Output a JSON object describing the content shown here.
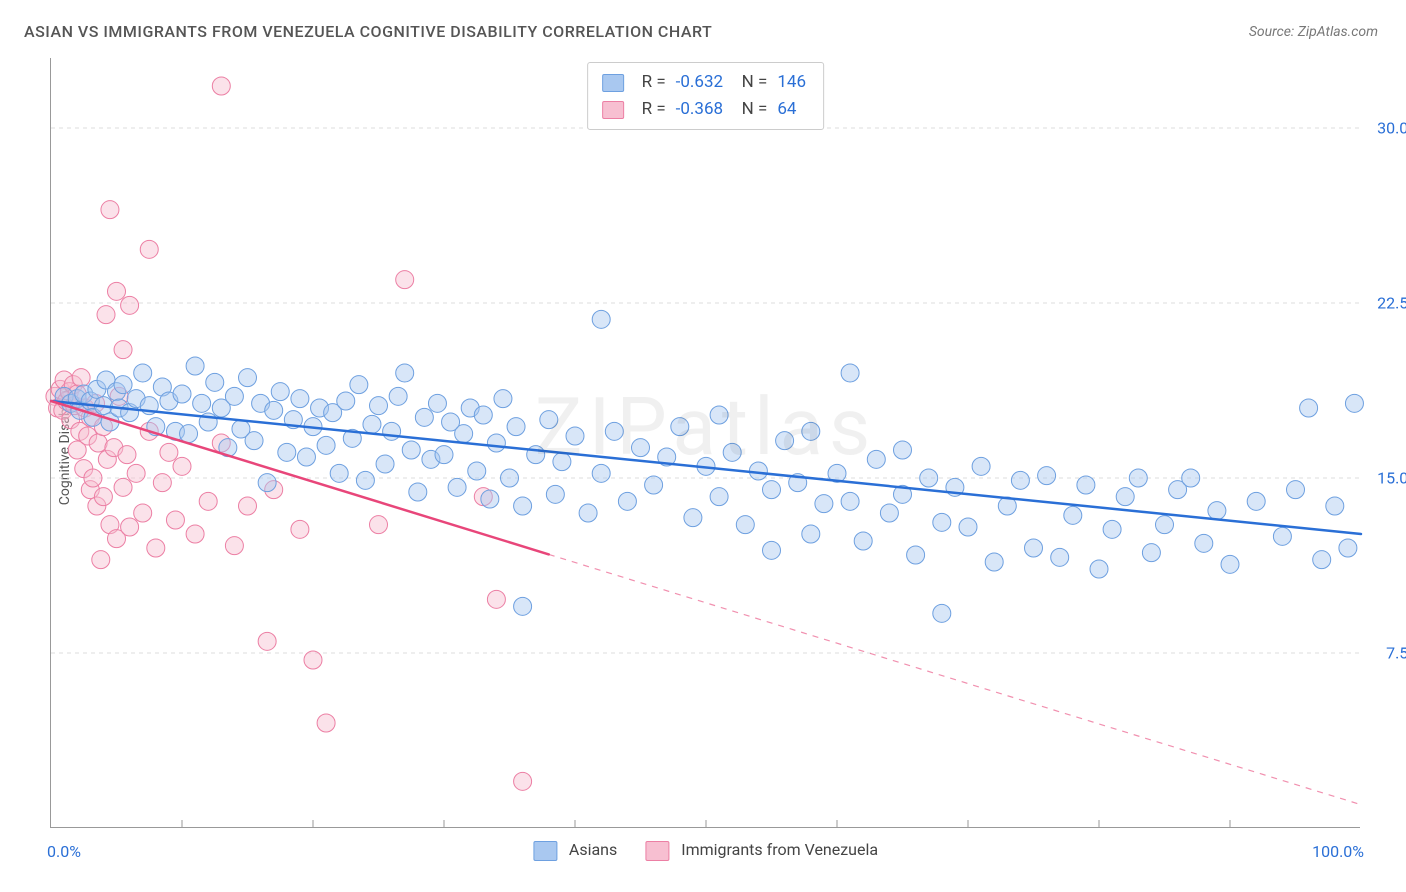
{
  "title": "ASIAN VS IMMIGRANTS FROM VENEZUELA COGNITIVE DISABILITY CORRELATION CHART",
  "source": "Source: ZipAtlas.com",
  "ylabel": "Cognitive Disability",
  "watermark": "ZIPatlas",
  "chart": {
    "type": "scatter",
    "xlim": [
      0,
      100
    ],
    "ylim": [
      0,
      33
    ],
    "x_tick_left": "0.0%",
    "x_tick_right": "100.0%",
    "x_minor_ticks": [
      10,
      20,
      30,
      40,
      50,
      60,
      70,
      80,
      90
    ],
    "y_ticks": [
      {
        "v": 7.5,
        "label": "7.5%"
      },
      {
        "v": 15.0,
        "label": "15.0%"
      },
      {
        "v": 22.5,
        "label": "22.5%"
      },
      {
        "v": 30.0,
        "label": "30.0%"
      }
    ],
    "background_color": "#ffffff",
    "grid_color": "#dddddd",
    "marker_radius": 9,
    "marker_opacity": 0.45,
    "line_width_solid": 2.5,
    "line_width_dash": 1.2,
    "series": [
      {
        "id": "asians",
        "label": "Asians",
        "color_fill": "#a9c8f0",
        "color_stroke": "#6ea0e0",
        "line_color": "#2a6fd6",
        "r": "-0.632",
        "n": "146",
        "trend": {
          "x1": 0,
          "y1": 18.3,
          "x2": 100,
          "y2": 12.6,
          "solid_until_x": 100
        },
        "points": [
          [
            1,
            18.5
          ],
          [
            1.5,
            18.2
          ],
          [
            2,
            18.4
          ],
          [
            2.2,
            17.9
          ],
          [
            2.5,
            18.6
          ],
          [
            3,
            18.3
          ],
          [
            3.2,
            17.6
          ],
          [
            3.5,
            18.8
          ],
          [
            4,
            18.1
          ],
          [
            4.2,
            19.2
          ],
          [
            4.5,
            17.4
          ],
          [
            5,
            18.7
          ],
          [
            5.2,
            18.0
          ],
          [
            5.5,
            19.0
          ],
          [
            6,
            17.8
          ],
          [
            6.5,
            18.4
          ],
          [
            7,
            19.5
          ],
          [
            7.5,
            18.1
          ],
          [
            8,
            17.2
          ],
          [
            8.5,
            18.9
          ],
          [
            9,
            18.3
          ],
          [
            9.5,
            17.0
          ],
          [
            10,
            18.6
          ],
          [
            10.5,
            16.9
          ],
          [
            11,
            19.8
          ],
          [
            11.5,
            18.2
          ],
          [
            12,
            17.4
          ],
          [
            12.5,
            19.1
          ],
          [
            13,
            18.0
          ],
          [
            13.5,
            16.3
          ],
          [
            14,
            18.5
          ],
          [
            14.5,
            17.1
          ],
          [
            15,
            19.3
          ],
          [
            15.5,
            16.6
          ],
          [
            16,
            18.2
          ],
          [
            16.5,
            14.8
          ],
          [
            17,
            17.9
          ],
          [
            17.5,
            18.7
          ],
          [
            18,
            16.1
          ],
          [
            18.5,
            17.5
          ],
          [
            19,
            18.4
          ],
          [
            19.5,
            15.9
          ],
          [
            20,
            17.2
          ],
          [
            20.5,
            18.0
          ],
          [
            21,
            16.4
          ],
          [
            21.5,
            17.8
          ],
          [
            22,
            15.2
          ],
          [
            22.5,
            18.3
          ],
          [
            23,
            16.7
          ],
          [
            23.5,
            19.0
          ],
          [
            24,
            14.9
          ],
          [
            24.5,
            17.3
          ],
          [
            25,
            18.1
          ],
          [
            25.5,
            15.6
          ],
          [
            26,
            17.0
          ],
          [
            26.5,
            18.5
          ],
          [
            27,
            19.5
          ],
          [
            27.5,
            16.2
          ],
          [
            28,
            14.4
          ],
          [
            28.5,
            17.6
          ],
          [
            29,
            15.8
          ],
          [
            29.5,
            18.2
          ],
          [
            30,
            16.0
          ],
          [
            30.5,
            17.4
          ],
          [
            31,
            14.6
          ],
          [
            31.5,
            16.9
          ],
          [
            32,
            18.0
          ],
          [
            32.5,
            15.3
          ],
          [
            33,
            17.7
          ],
          [
            33.5,
            14.1
          ],
          [
            34,
            16.5
          ],
          [
            34.5,
            18.4
          ],
          [
            35,
            15.0
          ],
          [
            35.5,
            17.2
          ],
          [
            36,
            13.8
          ],
          [
            36,
            9.5
          ],
          [
            37,
            16.0
          ],
          [
            38,
            17.5
          ],
          [
            38.5,
            14.3
          ],
          [
            39,
            15.7
          ],
          [
            40,
            16.8
          ],
          [
            41,
            13.5
          ],
          [
            42,
            21.8
          ],
          [
            42,
            15.2
          ],
          [
            43,
            17.0
          ],
          [
            44,
            14.0
          ],
          [
            45,
            16.3
          ],
          [
            46,
            14.7
          ],
          [
            47,
            15.9
          ],
          [
            48,
            17.2
          ],
          [
            49,
            13.3
          ],
          [
            50,
            15.5
          ],
          [
            51,
            14.2
          ],
          [
            51,
            17.7
          ],
          [
            52,
            16.1
          ],
          [
            53,
            13.0
          ],
          [
            54,
            15.3
          ],
          [
            55,
            11.9
          ],
          [
            55,
            14.5
          ],
          [
            56,
            16.6
          ],
          [
            57,
            14.8
          ],
          [
            58,
            12.6
          ],
          [
            58,
            17.0
          ],
          [
            59,
            13.9
          ],
          [
            60,
            15.2
          ],
          [
            61,
            19.5
          ],
          [
            61,
            14.0
          ],
          [
            62,
            12.3
          ],
          [
            63,
            15.8
          ],
          [
            64,
            13.5
          ],
          [
            65,
            16.2
          ],
          [
            65,
            14.3
          ],
          [
            66,
            11.7
          ],
          [
            67,
            15.0
          ],
          [
            68,
            13.1
          ],
          [
            68,
            9.2
          ],
          [
            69,
            14.6
          ],
          [
            70,
            12.9
          ],
          [
            71,
            15.5
          ],
          [
            72,
            11.4
          ],
          [
            73,
            13.8
          ],
          [
            74,
            14.9
          ],
          [
            75,
            12.0
          ],
          [
            76,
            15.1
          ],
          [
            77,
            11.6
          ],
          [
            78,
            13.4
          ],
          [
            79,
            14.7
          ],
          [
            80,
            11.1
          ],
          [
            81,
            12.8
          ],
          [
            82,
            14.2
          ],
          [
            83,
            15.0
          ],
          [
            84,
            11.8
          ],
          [
            85,
            13.0
          ],
          [
            86,
            14.5
          ],
          [
            87,
            15.0
          ],
          [
            88,
            12.2
          ],
          [
            89,
            13.6
          ],
          [
            90,
            11.3
          ],
          [
            92,
            14.0
          ],
          [
            94,
            12.5
          ],
          [
            95,
            14.5
          ],
          [
            96,
            18.0
          ],
          [
            97,
            11.5
          ],
          [
            98,
            13.8
          ],
          [
            99,
            12.0
          ],
          [
            99.5,
            18.2
          ]
        ]
      },
      {
        "id": "venezuela",
        "label": "Immigrants from Venezuela",
        "color_fill": "#f7bfd1",
        "color_stroke": "#ec7fa4",
        "line_color": "#e8467a",
        "r": "-0.368",
        "n": "64",
        "trend": {
          "x1": 0,
          "y1": 18.3,
          "x2": 100,
          "y2": 1.0,
          "solid_until_x": 38
        },
        "points": [
          [
            0.3,
            18.5
          ],
          [
            0.5,
            18.0
          ],
          [
            0.7,
            18.8
          ],
          [
            0.9,
            17.9
          ],
          [
            1.0,
            19.2
          ],
          [
            1.2,
            18.3
          ],
          [
            1.4,
            18.7
          ],
          [
            1.5,
            17.5
          ],
          [
            1.7,
            19.0
          ],
          [
            1.8,
            18.1
          ],
          [
            2.0,
            16.2
          ],
          [
            2.0,
            18.6
          ],
          [
            2.2,
            17.0
          ],
          [
            2.3,
            19.3
          ],
          [
            2.5,
            15.4
          ],
          [
            2.6,
            18.0
          ],
          [
            2.8,
            16.8
          ],
          [
            3.0,
            14.5
          ],
          [
            3.0,
            17.6
          ],
          [
            3.2,
            15.0
          ],
          [
            3.4,
            18.2
          ],
          [
            3.5,
            13.8
          ],
          [
            3.6,
            16.5
          ],
          [
            3.8,
            11.5
          ],
          [
            4.0,
            17.2
          ],
          [
            4.0,
            14.2
          ],
          [
            4.2,
            22.0
          ],
          [
            4.3,
            15.8
          ],
          [
            4.5,
            13.0
          ],
          [
            4.5,
            26.5
          ],
          [
            4.8,
            16.3
          ],
          [
            5.0,
            23.0
          ],
          [
            5.0,
            12.4
          ],
          [
            5.2,
            18.5
          ],
          [
            5.5,
            14.6
          ],
          [
            5.5,
            20.5
          ],
          [
            5.8,
            16.0
          ],
          [
            6.0,
            12.9
          ],
          [
            6.0,
            22.4
          ],
          [
            6.5,
            15.2
          ],
          [
            7.0,
            13.5
          ],
          [
            7.5,
            17.0
          ],
          [
            7.5,
            24.8
          ],
          [
            8.0,
            12.0
          ],
          [
            8.5,
            14.8
          ],
          [
            9.0,
            16.1
          ],
          [
            9.5,
            13.2
          ],
          [
            10.0,
            15.5
          ],
          [
            11.0,
            12.6
          ],
          [
            12.0,
            14.0
          ],
          [
            13.0,
            16.5
          ],
          [
            13.0,
            31.8
          ],
          [
            14.0,
            12.1
          ],
          [
            15.0,
            13.8
          ],
          [
            16.5,
            8.0
          ],
          [
            17.0,
            14.5
          ],
          [
            19.0,
            12.8
          ],
          [
            20.0,
            7.2
          ],
          [
            21.0,
            4.5
          ],
          [
            25.0,
            13.0
          ],
          [
            27.0,
            23.5
          ],
          [
            33.0,
            14.2
          ],
          [
            34.0,
            9.8
          ],
          [
            36.0,
            2.0
          ]
        ]
      }
    ]
  },
  "bottom_legend": {
    "asians_label": "Asians",
    "venezuela_label": "Immigrants from Venezuela"
  },
  "stat_legend": {
    "r_label": "R =",
    "n_label": "N ="
  }
}
